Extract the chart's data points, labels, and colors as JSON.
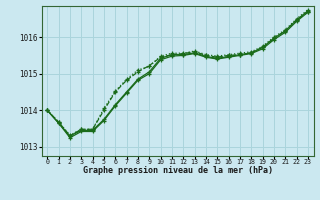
{
  "xlabel": "Graphe pression niveau de la mer (hPa)",
  "background_color": "#cbe8f0",
  "grid_color": "#aad4dc",
  "line_color": "#1a6b1a",
  "x_ticks": [
    0,
    1,
    2,
    3,
    4,
    5,
    6,
    7,
    8,
    9,
    10,
    11,
    12,
    13,
    14,
    15,
    16,
    17,
    18,
    19,
    20,
    21,
    22,
    23
  ],
  "ylim": [
    1012.75,
    1016.85
  ],
  "yticks": [
    1013,
    1014,
    1015,
    1016
  ],
  "line1_y": [
    1014.0,
    1013.65,
    1013.3,
    1013.45,
    1013.45,
    1013.75,
    1014.15,
    1014.5,
    1014.85,
    1015.05,
    1015.42,
    1015.52,
    1015.52,
    1015.57,
    1015.47,
    1015.42,
    1015.47,
    1015.52,
    1015.57,
    1015.72,
    1015.97,
    1016.17,
    1016.47,
    1016.72
  ],
  "line2_y": [
    1014.0,
    1013.65,
    1013.25,
    1013.42,
    1013.42,
    1013.72,
    1014.12,
    1014.47,
    1014.82,
    1015.0,
    1015.38,
    1015.48,
    1015.5,
    1015.55,
    1015.45,
    1015.4,
    1015.45,
    1015.5,
    1015.55,
    1015.68,
    1015.93,
    1016.13,
    1016.43,
    1016.68
  ],
  "line3_y": [
    1014.0,
    1013.68,
    1013.3,
    1013.48,
    1013.48,
    1014.0,
    1014.5,
    1014.82,
    1015.05,
    1015.22,
    1015.45,
    1015.52,
    1015.55,
    1015.6,
    1015.5,
    1015.45,
    1015.5,
    1015.52,
    1015.57,
    1015.72,
    1015.97,
    1016.17,
    1016.47,
    1016.68
  ],
  "line4_y": [
    1014.0,
    1013.68,
    1013.32,
    1013.48,
    1013.48,
    1014.05,
    1014.52,
    1014.85,
    1015.1,
    1015.2,
    1015.48,
    1015.56,
    1015.56,
    1015.62,
    1015.52,
    1015.48,
    1015.52,
    1015.56,
    1015.6,
    1015.75,
    1016.0,
    1016.2,
    1016.5,
    1016.75
  ]
}
